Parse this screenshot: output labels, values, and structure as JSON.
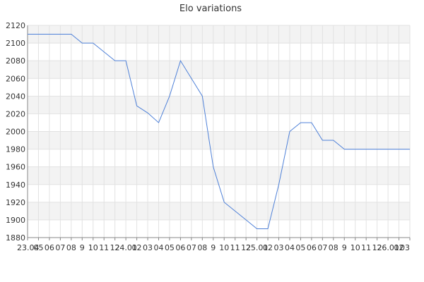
{
  "chart_data": {
    "type": "line",
    "title": "Elo variations",
    "xlabel": "",
    "ylabel": "",
    "ylim": [
      1880,
      2120
    ],
    "yticks": [
      1880,
      1900,
      1920,
      1940,
      1960,
      1980,
      2000,
      2020,
      2040,
      2060,
      2080,
      2100,
      2120
    ],
    "xlabels": [
      "23.04",
      "05",
      "06",
      "07",
      "08",
      "9",
      "10",
      "11",
      "12",
      "24.01",
      "02",
      "03",
      "04",
      "05",
      "06",
      "07",
      "08",
      "9",
      "10",
      "11",
      "12",
      "25.01",
      "02",
      "03",
      "04",
      "05",
      "06",
      "07",
      "08",
      "9",
      "10",
      "11",
      "12",
      "26.01",
      "02",
      "03"
    ],
    "grid": true,
    "banded_background": true,
    "line_color": "#4f81d8",
    "series": [
      {
        "values": [
          2110,
          2110,
          2110,
          2110,
          2110,
          2100,
          2100,
          2090,
          2080,
          2080,
          2029,
          2021,
          2010,
          2040,
          2080,
          2060,
          2040,
          1960,
          1920,
          1910,
          1900,
          1890,
          1890,
          1940,
          2000,
          2010,
          2010,
          1990,
          1990,
          1980,
          1980,
          1980,
          1980,
          1980,
          1980,
          1980
        ]
      }
    ]
  }
}
